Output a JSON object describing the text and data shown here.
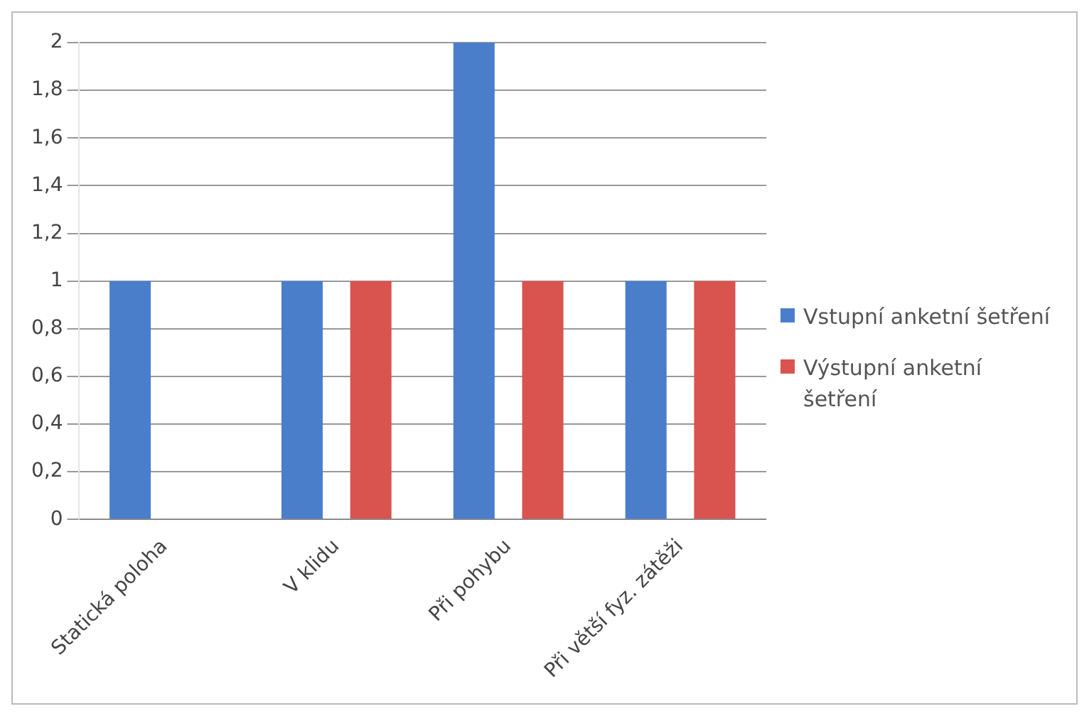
{
  "chart_data": {
    "type": "bar",
    "categories": [
      "Statická poloha",
      "V klidu",
      "Při pohybu",
      "Při větší fyz. zátěži"
    ],
    "series": [
      {
        "name": "Vstupní anketní šetření",
        "color": "#4a7ecb",
        "values": [
          1,
          1,
          2,
          1
        ]
      },
      {
        "name": "Výstupní anketní šetření",
        "color": "#d9534f",
        "values": [
          0,
          1,
          1,
          1
        ]
      }
    ],
    "ylim": [
      0,
      2
    ],
    "yticks": [
      0,
      {
        "value": 0.2,
        "label": "0,2"
      },
      {
        "value": 0.4,
        "label": "0,4"
      },
      {
        "value": 0.6,
        "label": "0,6"
      },
      {
        "value": 0.8,
        "label": "0,8"
      },
      1,
      {
        "value": 1.2,
        "label": "1,2"
      },
      {
        "value": 1.4,
        "label": "1,4"
      },
      {
        "value": 1.6,
        "label": "1,6"
      },
      {
        "value": 1.8,
        "label": "1,8"
      },
      2
    ],
    "grid": "y",
    "legend": "right"
  }
}
